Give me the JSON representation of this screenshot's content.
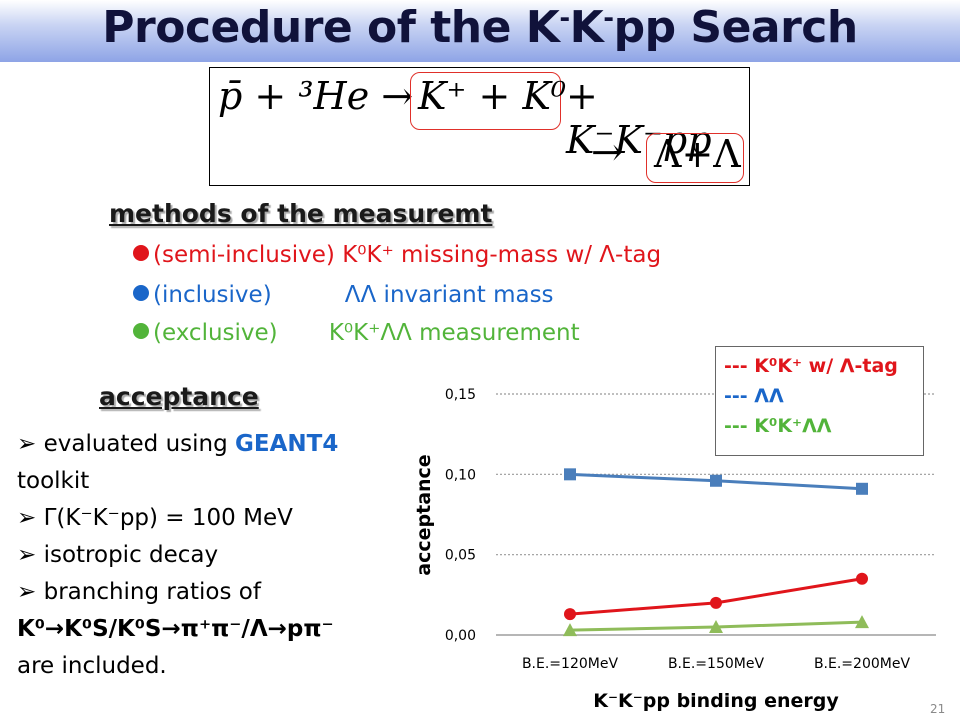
{
  "title": {
    "pre": "Procedure of the K",
    "sup1": "-",
    "mid": "K",
    "sup2": "-",
    "post": "pp Search"
  },
  "equation": {
    "line1_left": "p̄ + ³He →",
    "line1_boxed": "K⁺ + K⁰",
    "line1_right": "+ K⁻K⁻pp",
    "line2_arrow": "→",
    "line2_boxed": "Λ+Λ"
  },
  "methods": {
    "heading": "methods of the measuremt",
    "items": [
      {
        "text": "(semi-inclusive) K⁰K⁺ missing-mass w/ Λ-tag",
        "color": "#e0151b"
      },
      {
        "text": "(inclusive)          ΛΛ invariant mass",
        "color": "#1a66c9"
      },
      {
        "text": "(exclusive)       K⁰K⁺ΛΛ measurement",
        "color": "#52b43a"
      }
    ]
  },
  "acceptance": {
    "heading": "acceptance",
    "items": [
      {
        "pre": "evaluated using ",
        "highlight": "GEANT4",
        "post": ""
      },
      {
        "pre": "toolkit",
        "highlight": "",
        "post": ""
      },
      {
        "pre": "Γ(K⁻K⁻pp) = 100 MeV",
        "highlight": "",
        "post": ""
      },
      {
        "pre": "isotropic decay",
        "highlight": "",
        "post": ""
      },
      {
        "pre": "branching ratios of",
        "highlight": "",
        "post": ""
      },
      {
        "pre": "K⁰→K⁰S/K⁰S→π⁺π⁻/Λ→pπ⁻",
        "highlight": "",
        "post": ""
      },
      {
        "pre": "are included.",
        "highlight": "",
        "post": ""
      }
    ],
    "highlight_color": "#1a66c9"
  },
  "legend": [
    {
      "text": "--- K⁰K⁺ w/ Λ-tag",
      "color": "#e0151b"
    },
    {
      "text": "--- ΛΛ",
      "color": "#1a66c9"
    },
    {
      "text": "--- K⁰K⁺ΛΛ",
      "color": "#52b43a"
    }
  ],
  "page_number": "21",
  "chart_data": {
    "type": "line",
    "categories": [
      "B.E.=120MeV",
      "B.E.=150MeV",
      "B.E.=200MeV"
    ],
    "series": [
      {
        "name": "ΛΛ",
        "color": "#4a7ebb",
        "marker": "square",
        "values": [
          0.1,
          0.096,
          0.091
        ]
      },
      {
        "name": "K⁰K⁺ w/ Λ-tag",
        "color": "#e0151b",
        "marker": "circle",
        "values": [
          0.013,
          0.02,
          0.035
        ]
      },
      {
        "name": "K⁰K⁺ΛΛ",
        "color": "#8fbc5a",
        "marker": "triangle",
        "values": [
          0.003,
          0.005,
          0.008
        ]
      }
    ],
    "xlabel": "K⁻K⁻pp binding energy",
    "ylabel": "acceptance",
    "ylim": [
      0,
      0.15
    ],
    "yticks": [
      "0,00",
      "0,05",
      "0,10",
      "0,15"
    ],
    "grid": true
  }
}
